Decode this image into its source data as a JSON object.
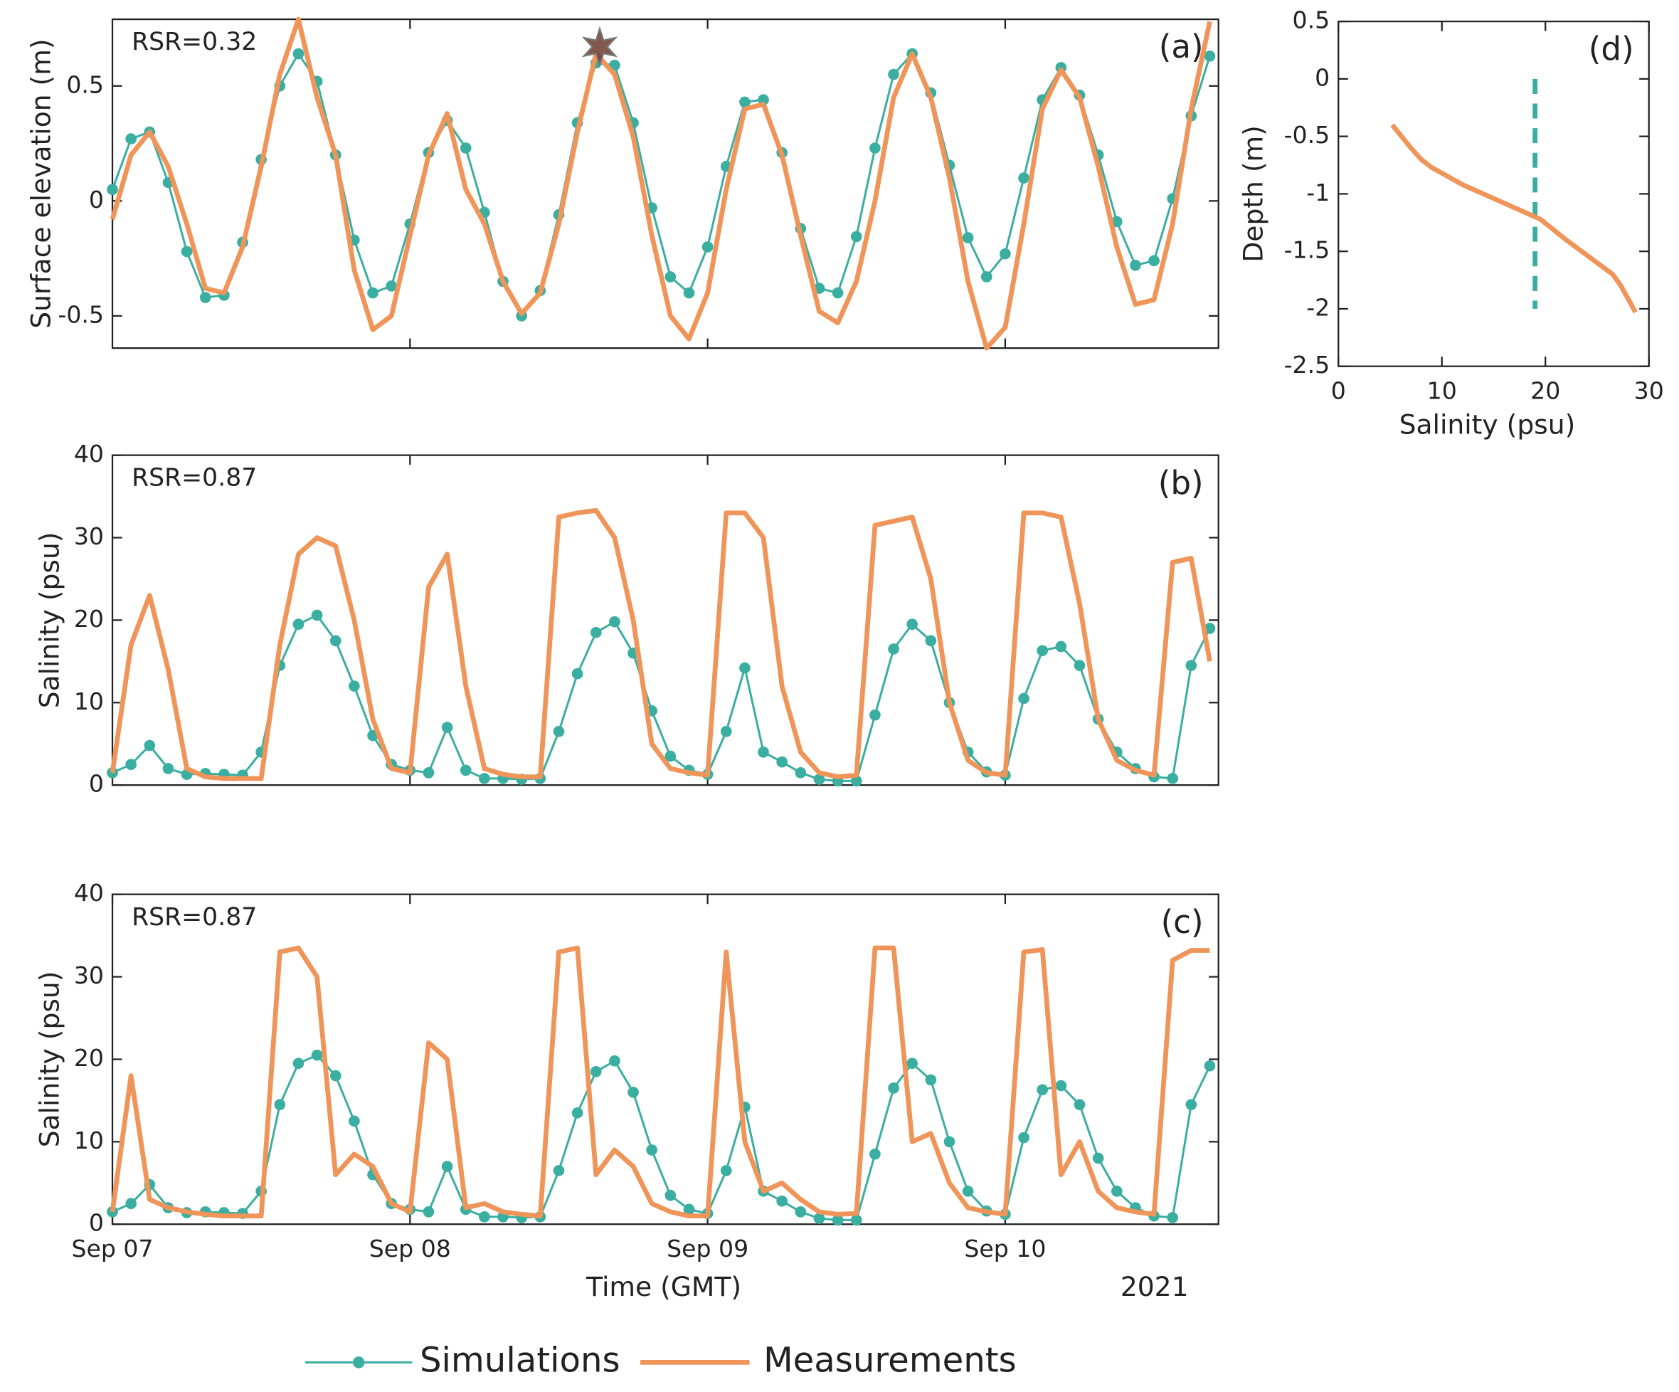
{
  "chart_data": [
    {
      "type": "line",
      "ylabel": "Surface elevation (m)",
      "rsr_label": "RSR=0.32",
      "panel_label": "(a)",
      "xlim": [
        0,
        89.2
      ],
      "ylim": [
        -0.64,
        0.79
      ],
      "xticks": [
        24,
        48,
        72
      ],
      "yticks": [
        0.5,
        0,
        -0.5
      ],
      "highlight": {
        "x": 39.3,
        "y": 0.67
      },
      "x": [
        0,
        1.5,
        3,
        4.5,
        6,
        7.5,
        9,
        10.5,
        12,
        13.5,
        15,
        16.5,
        18,
        19.5,
        21,
        22.5,
        24,
        25.5,
        27,
        28.5,
        30,
        31.5,
        33,
        34.5,
        36,
        37.5,
        39,
        40.5,
        42,
        43.5,
        45,
        46.5,
        48,
        49.5,
        51,
        52.5,
        54,
        55.5,
        57,
        58.5,
        60,
        61.5,
        63,
        64.5,
        66,
        67.5,
        69,
        70.5,
        72,
        73.5,
        75,
        76.5,
        78,
        79.5,
        81,
        82.5,
        84,
        85.5,
        87,
        88.5
      ],
      "series": [
        {
          "name": "Simulations",
          "color": "#3aaea1",
          "marker": "o",
          "linestyle": "solid",
          "values": [
            0.05,
            0.27,
            0.3,
            0.08,
            -0.22,
            -0.42,
            -0.41,
            -0.18,
            0.18,
            0.5,
            0.64,
            0.52,
            0.2,
            -0.17,
            -0.4,
            -0.37,
            -0.1,
            0.21,
            0.35,
            0.23,
            -0.05,
            -0.35,
            -0.5,
            -0.39,
            -0.06,
            0.34,
            0.6,
            0.59,
            0.34,
            -0.03,
            -0.33,
            -0.4,
            -0.2,
            0.15,
            0.43,
            0.44,
            0.21,
            -0.12,
            -0.38,
            -0.4,
            -0.155,
            0.23,
            0.55,
            0.64,
            0.47,
            0.155,
            -0.16,
            -0.33,
            -0.23,
            0.1,
            0.44,
            0.58,
            0.46,
            0.2,
            -0.09,
            -0.28,
            -0.26,
            0.01,
            0.37,
            0.63
          ]
        },
        {
          "name": "Measurements",
          "color": "#f0955a",
          "linestyle": "solid",
          "values": [
            -0.08,
            0.2,
            0.3,
            0.15,
            -0.1,
            -0.38,
            -0.4,
            -0.2,
            0.15,
            0.55,
            0.79,
            0.45,
            0.2,
            -0.3,
            -0.56,
            -0.5,
            -0.15,
            0.2,
            0.38,
            0.05,
            -0.1,
            -0.35,
            -0.49,
            -0.4,
            -0.1,
            0.3,
            0.64,
            0.55,
            0.28,
            -0.15,
            -0.5,
            -0.6,
            -0.4,
            0.05,
            0.4,
            0.42,
            0.2,
            -0.15,
            -0.48,
            -0.53,
            -0.35,
            0.0,
            0.45,
            0.64,
            0.45,
            0.1,
            -0.35,
            -0.64,
            -0.55,
            -0.1,
            0.4,
            0.57,
            0.45,
            0.15,
            -0.2,
            -0.45,
            -0.43,
            -0.1,
            0.4,
            0.78
          ]
        }
      ]
    },
    {
      "type": "line",
      "ylabel": "Salinity (psu)",
      "rsr_label": "RSR=0.87",
      "panel_label": "(b)",
      "xlim": [
        0,
        89.2
      ],
      "ylim": [
        0,
        40
      ],
      "xticks": [
        24,
        48,
        72
      ],
      "yticks": [
        0,
        10,
        20,
        30,
        40
      ],
      "x": [
        0,
        1.5,
        3,
        4.5,
        6,
        7.5,
        9,
        10.5,
        12,
        13.5,
        15,
        16.5,
        18,
        19.5,
        21,
        22.5,
        24,
        25.5,
        27,
        28.5,
        30,
        31.5,
        33,
        34.5,
        36,
        37.5,
        39,
        40.5,
        42,
        43.5,
        45,
        46.5,
        48,
        49.5,
        51,
        52.5,
        54,
        55.5,
        57,
        58.5,
        60,
        61.5,
        63,
        64.5,
        66,
        67.5,
        69,
        70.5,
        72,
        73.5,
        75,
        76.5,
        78,
        79.5,
        81,
        82.5,
        84,
        85.5,
        87,
        88.5
      ],
      "series": [
        {
          "color": "#3aaea1",
          "marker": "o",
          "linestyle": "solid",
          "values": [
            1.5,
            2.5,
            4.8,
            2.0,
            1.3,
            1.4,
            1.3,
            1.2,
            4.0,
            14.5,
            19.5,
            20.6,
            17.5,
            12.0,
            6.0,
            2.5,
            1.8,
            1.5,
            7.0,
            1.8,
            0.8,
            0.8,
            0.7,
            0.8,
            6.5,
            13.5,
            18.5,
            19.8,
            16.0,
            9.0,
            3.5,
            1.8,
            1.3,
            6.5,
            14.2,
            4.0,
            2.8,
            1.5,
            0.7,
            0.5,
            0.5,
            8.5,
            16.5,
            19.5,
            17.5,
            10.0,
            4.0,
            1.6,
            1.2,
            10.5,
            16.3,
            16.8,
            14.5,
            8.0,
            4.0,
            2.0,
            1.0,
            0.8,
            14.5,
            19.0
          ]
        },
        {
          "color": "#f0955a",
          "linestyle": "solid",
          "values": [
            1.5,
            17,
            23,
            14,
            2,
            1.0,
            0.8,
            0.8,
            0.8,
            17,
            28,
            30,
            29,
            20,
            8,
            2,
            1.5,
            24,
            28,
            12,
            2,
            1.3,
            1.0,
            1.0,
            32.5,
            33,
            33.3,
            30,
            20,
            5,
            2,
            1.5,
            1.2,
            33,
            33,
            30,
            12,
            4,
            1.5,
            1.0,
            1.2,
            31.5,
            32,
            32.5,
            25,
            10,
            3,
            1.5,
            1.2,
            33,
            33,
            32.5,
            22,
            8,
            3,
            1.8,
            1.2,
            27,
            27.5,
            15
          ]
        }
      ]
    },
    {
      "type": "line",
      "ylabel": "Salinity (psu)",
      "rsr_label": "RSR=0.87",
      "panel_label": "(c)",
      "xlabel": "Time (GMT)",
      "year_label": "2021",
      "xlim": [
        0,
        89.2
      ],
      "ylim": [
        0,
        40
      ],
      "xticks": [
        {
          "value": 0,
          "label": "Sep 07"
        },
        {
          "value": 24,
          "label": "Sep 08"
        },
        {
          "value": 48,
          "label": "Sep 09"
        },
        {
          "value": 72,
          "label": "Sep 10"
        }
      ],
      "yticks": [
        0,
        10,
        20,
        30,
        40
      ],
      "x": [
        0,
        1.5,
        3,
        4.5,
        6,
        7.5,
        9,
        10.5,
        12,
        13.5,
        15,
        16.5,
        18,
        19.5,
        21,
        22.5,
        24,
        25.5,
        27,
        28.5,
        30,
        31.5,
        33,
        34.5,
        36,
        37.5,
        39,
        40.5,
        42,
        43.5,
        45,
        46.5,
        48,
        49.5,
        51,
        52.5,
        54,
        55.5,
        57,
        58.5,
        60,
        61.5,
        63,
        64.5,
        66,
        67.5,
        69,
        70.5,
        72,
        73.5,
        75,
        76.5,
        78,
        79.5,
        81,
        82.5,
        84,
        85.5,
        87,
        88.5
      ],
      "series": [
        {
          "color": "#3aaea1",
          "marker": "o",
          "linestyle": "solid",
          "values": [
            1.5,
            2.5,
            4.8,
            2.0,
            1.4,
            1.5,
            1.4,
            1.3,
            4.0,
            14.5,
            19.5,
            20.5,
            18.0,
            12.5,
            6.0,
            2.5,
            1.8,
            1.5,
            7.0,
            1.8,
            0.9,
            0.9,
            0.8,
            0.9,
            6.5,
            13.5,
            18.5,
            19.8,
            16.0,
            9.0,
            3.5,
            1.8,
            1.3,
            6.5,
            14.2,
            4.0,
            2.8,
            1.5,
            0.7,
            0.5,
            0.5,
            8.5,
            16.5,
            19.5,
            17.5,
            10.0,
            4.0,
            1.6,
            1.2,
            10.5,
            16.3,
            16.8,
            14.5,
            8.0,
            4.0,
            2.0,
            1.0,
            0.8,
            14.5,
            19.2
          ]
        },
        {
          "color": "#f0955a",
          "linestyle": "solid",
          "values": [
            1.5,
            18,
            3,
            2,
            1.5,
            1.2,
            1.0,
            1.0,
            1.0,
            33,
            33.5,
            30,
            6,
            8.5,
            7,
            2.5,
            1.5,
            22,
            20,
            2,
            2.5,
            1.5,
            1.2,
            1.0,
            33,
            33.5,
            6,
            9,
            7,
            2.5,
            1.5,
            1.0,
            1.0,
            33,
            10,
            4,
            5,
            3,
            1.5,
            1.2,
            1.3,
            33.5,
            33.5,
            10,
            11,
            5,
            2,
            1.5,
            1.2,
            33,
            33.3,
            6,
            10,
            4,
            2,
            1.5,
            1.2,
            32,
            33.2,
            33.2
          ]
        }
      ]
    },
    {
      "type": "line",
      "ylabel": "Depth (m)",
      "xlabel": "Salinity (psu)",
      "panel_label": "(d)",
      "xlim": [
        0,
        30
      ],
      "ylim": [
        -2.5,
        0.5
      ],
      "xticks": [
        0,
        10,
        20,
        30
      ],
      "yticks": [
        0.5,
        0,
        -0.5,
        -1,
        -1.5,
        -2,
        -2.5
      ],
      "series": [
        {
          "color": "#3aaea1",
          "linestyle": "dashed",
          "x": [
            19,
            19
          ],
          "values": [
            0,
            -2
          ]
        },
        {
          "color": "#f0955a",
          "linestyle": "solid",
          "x": [
            5.2,
            7,
            8,
            9,
            12,
            16,
            19.5,
            22,
            25,
            26.5,
            27.3,
            28.7
          ],
          "values": [
            -0.4,
            -0.6,
            -0.7,
            -0.77,
            -0.92,
            -1.08,
            -1.22,
            -1.4,
            -1.6,
            -1.7,
            -1.8,
            -2.03
          ]
        }
      ]
    }
  ]
}
